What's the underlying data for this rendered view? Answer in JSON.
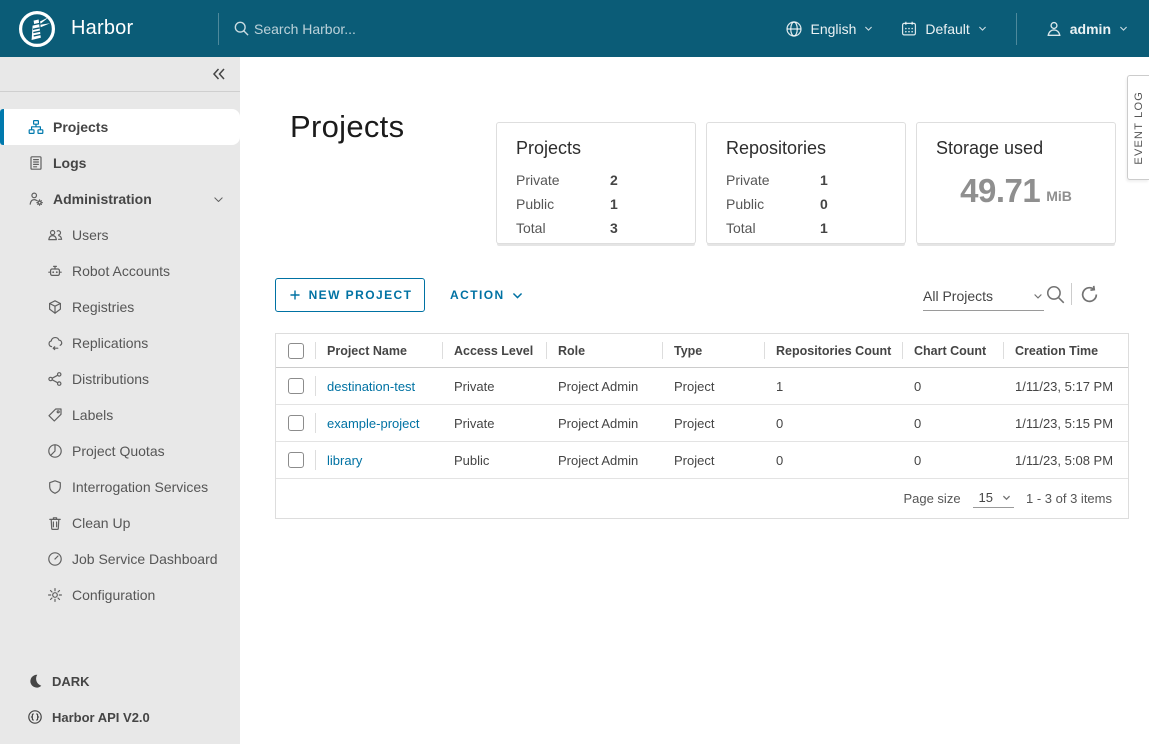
{
  "colors": {
    "header_bg": "#0B5C77",
    "accent": "#0072A3",
    "active_nav": "#0079AD",
    "link": "#0072A3",
    "body_text": "#454545"
  },
  "header": {
    "brand": "Harbor",
    "search_placeholder": "Search Harbor...",
    "language_label": "English",
    "scope_label": "Default",
    "user_label": "admin"
  },
  "sidebar": {
    "items": [
      {
        "label": "Projects",
        "icon": "projects-icon",
        "active": true,
        "indent": 0
      },
      {
        "label": "Logs",
        "icon": "logs-icon",
        "indent": 0
      },
      {
        "label": "Administration",
        "icon": "admin-user-gear-icon",
        "indent": 0,
        "expandable": true
      },
      {
        "label": "Users",
        "icon": "users-icon",
        "indent": 1
      },
      {
        "label": "Robot Accounts",
        "icon": "robot-icon",
        "indent": 1
      },
      {
        "label": "Registries",
        "icon": "registries-cube-icon",
        "indent": 1
      },
      {
        "label": "Replications",
        "icon": "replications-cloud-icon",
        "indent": 1
      },
      {
        "label": "Distributions",
        "icon": "distributions-share-icon",
        "indent": 1
      },
      {
        "label": "Labels",
        "icon": "label-tag-icon",
        "indent": 1
      },
      {
        "label": "Project Quotas",
        "icon": "quotas-pie-icon",
        "indent": 1
      },
      {
        "label": "Interrogation Services",
        "icon": "shield-icon",
        "indent": 1
      },
      {
        "label": "Clean Up",
        "icon": "trash-icon",
        "indent": 1
      },
      {
        "label": "Job Service Dashboard",
        "icon": "dashboard-gauge-icon",
        "indent": 1
      },
      {
        "label": "Configuration",
        "icon": "gear-icon",
        "indent": 1
      }
    ],
    "footer_items": [
      {
        "label": "DARK",
        "icon": "moon-icon"
      },
      {
        "label": "Harbor API V2.0",
        "icon": "api-globe-icon"
      }
    ]
  },
  "main": {
    "title": "Projects",
    "cards": [
      {
        "title": "Projects",
        "rows": [
          {
            "label": "Private",
            "value": "2"
          },
          {
            "label": "Public",
            "value": "1"
          },
          {
            "label": "Total",
            "value": "3"
          }
        ]
      },
      {
        "title": "Repositories",
        "rows": [
          {
            "label": "Private",
            "value": "1"
          },
          {
            "label": "Public",
            "value": "0"
          },
          {
            "label": "Total",
            "value": "1"
          }
        ]
      },
      {
        "title": "Storage used",
        "big_value": "49.71",
        "unit": "MiB"
      }
    ],
    "toolbar": {
      "new_project_label": "NEW PROJECT",
      "action_label": "ACTION",
      "filter_value": "All Projects"
    },
    "table": {
      "columns": [
        "Project Name",
        "Access Level",
        "Role",
        "Type",
        "Repositories Count",
        "Chart Count",
        "Creation Time"
      ],
      "rows": [
        {
          "name": "destination-test",
          "access_level": "Private",
          "role": "Project Admin",
          "type": "Project",
          "repositories_count": "1",
          "chart_count": "0",
          "creation_time": "1/11/23, 5:17 PM"
        },
        {
          "name": "example-project",
          "access_level": "Private",
          "role": "Project Admin",
          "type": "Project",
          "repositories_count": "0",
          "chart_count": "0",
          "creation_time": "1/11/23, 5:15 PM"
        },
        {
          "name": "library",
          "access_level": "Public",
          "role": "Project Admin",
          "type": "Project",
          "repositories_count": "0",
          "chart_count": "0",
          "creation_time": "1/11/23, 5:08 PM"
        }
      ],
      "footer": {
        "page_size_label": "Page size",
        "page_size": "15",
        "range_text": "1 - 3 of 3 items"
      }
    }
  },
  "event_log_label": "EVENT LOG"
}
